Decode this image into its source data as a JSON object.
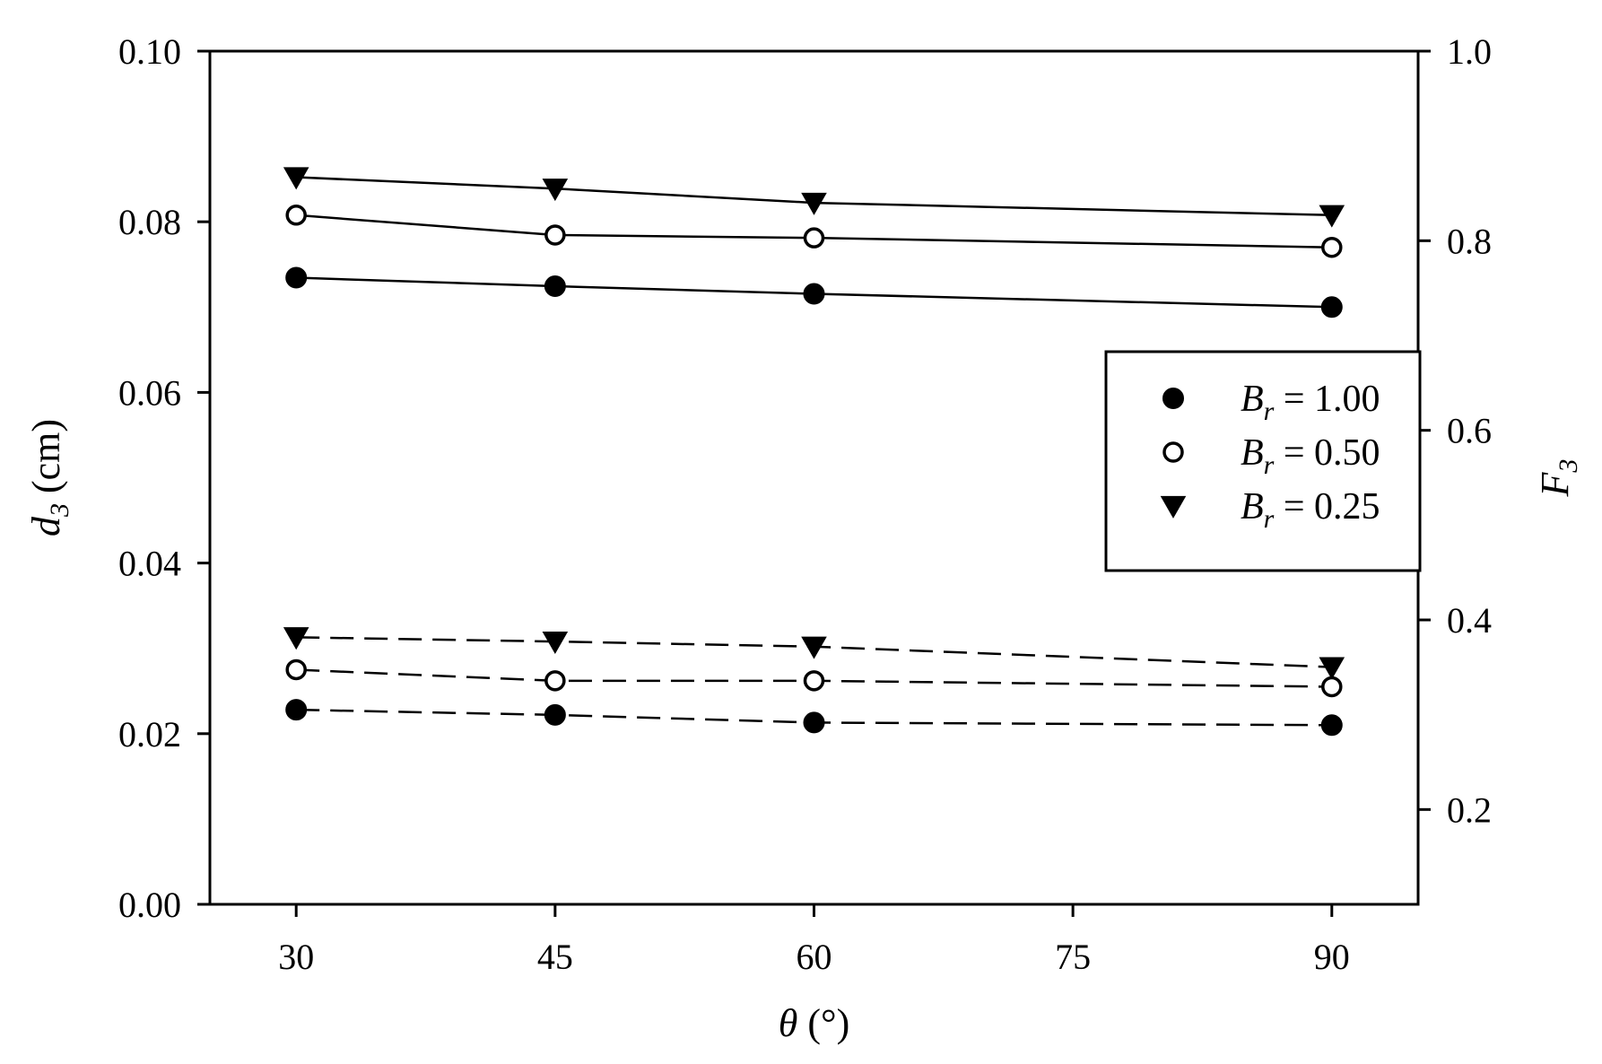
{
  "chart_data": {
    "type": "line",
    "xlabel": {
      "symbol": "θ",
      "rest": " (°)"
    },
    "ylabel_left": {
      "symbol": "d",
      "sub": "3",
      "rest": " (cm)"
    },
    "ylabel_right": {
      "symbol": "F",
      "sub": "3"
    },
    "x_ticks": [
      "30",
      "45",
      "60",
      "75",
      "90"
    ],
    "x_tick_values": [
      30,
      45,
      60,
      75,
      90
    ],
    "xlim": [
      25,
      95
    ],
    "y_left_ticks": [
      "0.00",
      "0.02",
      "0.04",
      "0.06",
      "0.08",
      "0.10"
    ],
    "y_left_tick_values": [
      0,
      0.02,
      0.04,
      0.06,
      0.08,
      0.1
    ],
    "ylim_left": [
      0,
      0.1
    ],
    "y_right_ticks": [
      "0.2",
      "0.4",
      "0.6",
      "0.8",
      "1.0"
    ],
    "y_right_tick_values": [
      0.2,
      0.4,
      0.6,
      0.8,
      1.0
    ],
    "ylim_right": [
      0.1,
      1.0
    ],
    "legend_position": "right",
    "legend": [
      {
        "symbol": "B",
        "sub": "r",
        "rest": " = 1.00",
        "marker": "filled-circle"
      },
      {
        "symbol": "B",
        "sub": "r",
        "rest": " = 0.50",
        "marker": "open-circle"
      },
      {
        "symbol": "B",
        "sub": "r",
        "rest": " = 0.25",
        "marker": "filled-triangle-down"
      }
    ],
    "series": [
      {
        "axis": "right",
        "marker": "filled-triangle-down",
        "line": "solid",
        "x": [
          30,
          45,
          60,
          90
        ],
        "y": [
          0.867,
          0.855,
          0.84,
          0.827
        ]
      },
      {
        "axis": "right",
        "marker": "open-circle",
        "line": "solid",
        "x": [
          30,
          45,
          60,
          90
        ],
        "y": [
          0.827,
          0.806,
          0.803,
          0.793
        ]
      },
      {
        "axis": "right",
        "marker": "filled-circle",
        "line": "solid",
        "x": [
          30,
          45,
          60,
          90
        ],
        "y": [
          0.761,
          0.752,
          0.744,
          0.73
        ]
      },
      {
        "axis": "left",
        "marker": "filled-triangle-down",
        "line": "dashed",
        "x": [
          30,
          45,
          60,
          90
        ],
        "y": [
          0.0313,
          0.0308,
          0.0302,
          0.0278
        ]
      },
      {
        "axis": "left",
        "marker": "open-circle",
        "line": "dashed",
        "x": [
          30,
          45,
          60,
          90
        ],
        "y": [
          0.0275,
          0.0262,
          0.0262,
          0.0255
        ]
      },
      {
        "axis": "left",
        "marker": "filled-circle",
        "line": "dashed",
        "x": [
          30,
          45,
          60,
          90
        ],
        "y": [
          0.0228,
          0.0222,
          0.0213,
          0.021
        ]
      }
    ]
  }
}
